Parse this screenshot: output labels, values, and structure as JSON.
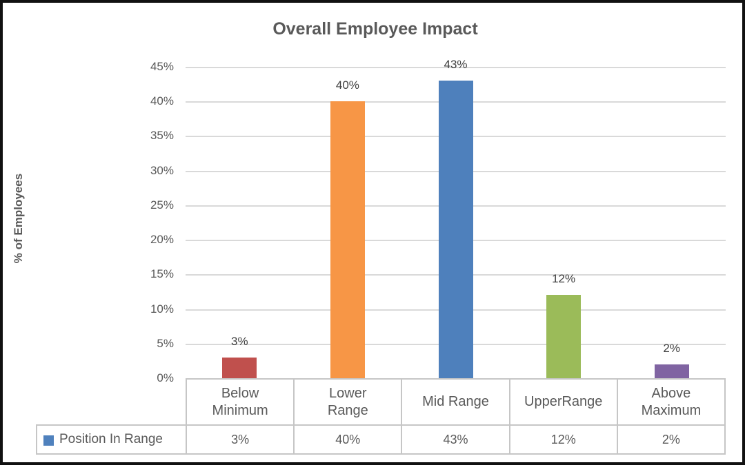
{
  "chart_data": {
    "type": "bar",
    "title": "Overall Employee Impact",
    "xlabel": "",
    "ylabel": "% of Employees",
    "categories": [
      "Below Minimum",
      "Lower Range",
      "Mid Range",
      "UpperRange",
      "Above Maximum"
    ],
    "categories_wrapped": [
      "Below\nMinimum",
      "Lower\nRange",
      "Mid Range",
      "UpperRange",
      "Above\nMaximum"
    ],
    "series": [
      {
        "name": "Position In Range",
        "values": [
          3,
          40,
          43,
          12,
          2
        ],
        "data_labels": [
          "3%",
          "40%",
          "43%",
          "12%",
          "2%"
        ],
        "bar_colors": [
          "#c0504d",
          "#f79646",
          "#4e80bc",
          "#9bbb59",
          "#8064a2"
        ],
        "legend_marker_color": "#4f81bd"
      }
    ],
    "ylim": [
      0,
      45
    ],
    "ytick_labels": [
      "45%",
      "40%",
      "35%",
      "30%",
      "25%",
      "20%",
      "15%",
      "10%",
      "5%",
      "0%"
    ],
    "grid": true,
    "gridline_color": "#d9d9d9",
    "legend_position": "bottom-left-data-table",
    "data_table": {
      "legend_label": "Position In Range",
      "row_values": [
        "3%",
        "40%",
        "43%",
        "12%",
        "2%"
      ]
    },
    "text_color": "#595959"
  }
}
